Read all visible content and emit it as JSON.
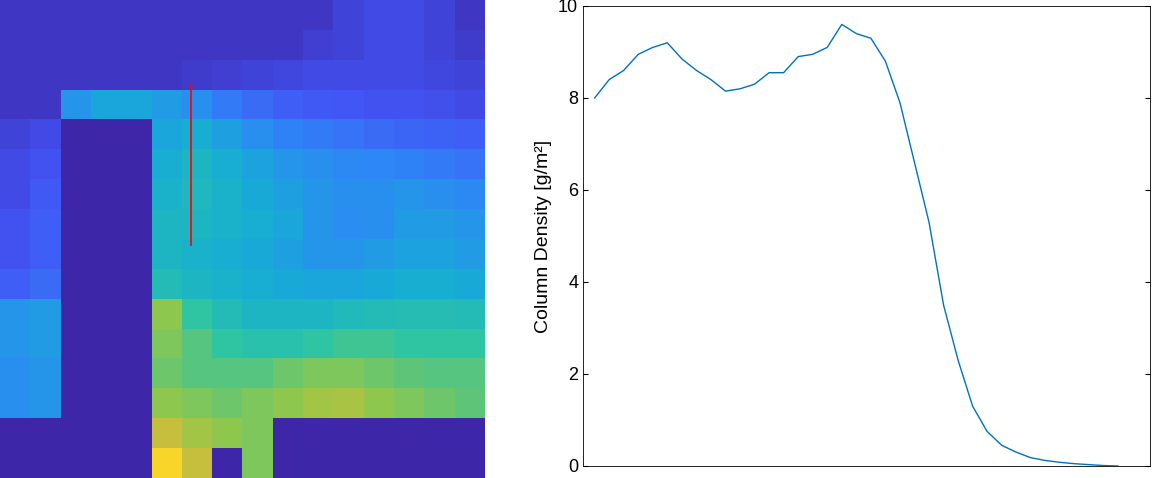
{
  "chart_data": [
    {
      "type": "heatmap",
      "tick_labels": false,
      "vmin": 0,
      "vmax": 1,
      "cells": [
        [
          0.05,
          0.05,
          0.05,
          0.05,
          0.05,
          0.05,
          0.05,
          0.05,
          0.05,
          0.05,
          0.05,
          0.08,
          0.1,
          0.1,
          0.08,
          0.05
        ],
        [
          0.05,
          0.05,
          0.05,
          0.05,
          0.05,
          0.05,
          0.05,
          0.05,
          0.05,
          0.05,
          0.07,
          0.08,
          0.1,
          0.1,
          0.08,
          0.06
        ],
        [
          0.05,
          0.05,
          0.05,
          0.05,
          0.05,
          0.05,
          0.06,
          0.07,
          0.08,
          0.09,
          0.1,
          0.1,
          0.1,
          0.1,
          0.09,
          0.08
        ],
        [
          0.05,
          0.05,
          0.3,
          0.35,
          0.35,
          0.32,
          0.28,
          0.22,
          0.18,
          0.15,
          0.14,
          0.13,
          0.12,
          0.12,
          0.11,
          0.1
        ],
        [
          0.08,
          0.1,
          0.0,
          0.0,
          0.0,
          0.35,
          0.38,
          0.33,
          0.28,
          0.24,
          0.22,
          0.2,
          0.18,
          0.17,
          0.16,
          0.15
        ],
        [
          0.1,
          0.12,
          0.0,
          0.0,
          0.0,
          0.38,
          0.42,
          0.38,
          0.34,
          0.3,
          0.28,
          0.26,
          0.25,
          0.24,
          0.22,
          0.2
        ],
        [
          0.1,
          0.14,
          0.0,
          0.0,
          0.0,
          0.4,
          0.43,
          0.4,
          0.36,
          0.33,
          0.3,
          0.28,
          0.28,
          0.3,
          0.28,
          0.26
        ],
        [
          0.12,
          0.15,
          0.0,
          0.0,
          0.0,
          0.42,
          0.42,
          0.4,
          0.38,
          0.35,
          0.3,
          0.27,
          0.28,
          0.32,
          0.32,
          0.3
        ],
        [
          0.12,
          0.15,
          0.0,
          0.0,
          0.0,
          0.42,
          0.4,
          0.38,
          0.36,
          0.33,
          0.3,
          0.3,
          0.32,
          0.34,
          0.34,
          0.32
        ],
        [
          0.15,
          0.18,
          0.0,
          0.0,
          0.0,
          0.45,
          0.42,
          0.4,
          0.38,
          0.36,
          0.35,
          0.35,
          0.36,
          0.38,
          0.38,
          0.36
        ],
        [
          0.3,
          0.32,
          0.0,
          0.0,
          0.0,
          0.62,
          0.5,
          0.45,
          0.42,
          0.42,
          0.42,
          0.44,
          0.45,
          0.46,
          0.46,
          0.45
        ],
        [
          0.3,
          0.32,
          0.0,
          0.0,
          0.0,
          0.6,
          0.55,
          0.5,
          0.48,
          0.48,
          0.5,
          0.52,
          0.52,
          0.5,
          0.5,
          0.5
        ],
        [
          0.28,
          0.3,
          0.0,
          0.0,
          0.0,
          0.58,
          0.55,
          0.55,
          0.55,
          0.58,
          0.6,
          0.6,
          0.58,
          0.56,
          0.55,
          0.55
        ],
        [
          0.28,
          0.3,
          0.0,
          0.0,
          0.0,
          0.62,
          0.6,
          0.58,
          0.6,
          0.62,
          0.65,
          0.66,
          0.62,
          0.6,
          0.58,
          0.56
        ],
        [
          0.0,
          0.0,
          0.0,
          0.0,
          0.0,
          0.7,
          0.65,
          0.62,
          0.6,
          0.0,
          0.0,
          0.0,
          0.0,
          0.0,
          0.0,
          0.0
        ],
        [
          0.0,
          0.0,
          0.0,
          0.0,
          0.0,
          0.85,
          0.7,
          0.0,
          0.6,
          0.0,
          0.0,
          0.0,
          0.0,
          0.0,
          0.0,
          0.0
        ]
      ],
      "profile_line": {
        "x": [
          6.3,
          6.3
        ],
        "y": [
          2.8,
          8.2
        ],
        "color": "#ff0000"
      }
    },
    {
      "type": "line",
      "y_label": "Column Density [g/m²]",
      "tick_labels": "y",
      "color": "#0072bd",
      "x": [
        0,
        1,
        2,
        3,
        4,
        5,
        6,
        7,
        8,
        9,
        10,
        11,
        12,
        13,
        14,
        15,
        16,
        17,
        18,
        19,
        20,
        21,
        22,
        23,
        24,
        25,
        26,
        27,
        28,
        29,
        30,
        31,
        32,
        33,
        34,
        35,
        36
      ],
      "values": [
        8.0,
        8.4,
        8.6,
        8.95,
        9.1,
        9.2,
        8.85,
        8.6,
        8.4,
        8.15,
        8.2,
        8.3,
        8.55,
        8.55,
        8.9,
        8.95,
        9.1,
        9.6,
        9.4,
        9.3,
        8.8,
        7.9,
        6.6,
        5.3,
        3.5,
        2.3,
        1.3,
        0.75,
        0.45,
        0.3,
        0.18,
        0.12,
        0.08,
        0.05,
        0.03,
        0.01,
        0.0
      ],
      "xlim": [
        -0.8,
        38.2
      ],
      "ylim": [
        0,
        10
      ],
      "yticks": [
        0,
        2,
        4,
        6,
        8,
        10
      ]
    }
  ]
}
